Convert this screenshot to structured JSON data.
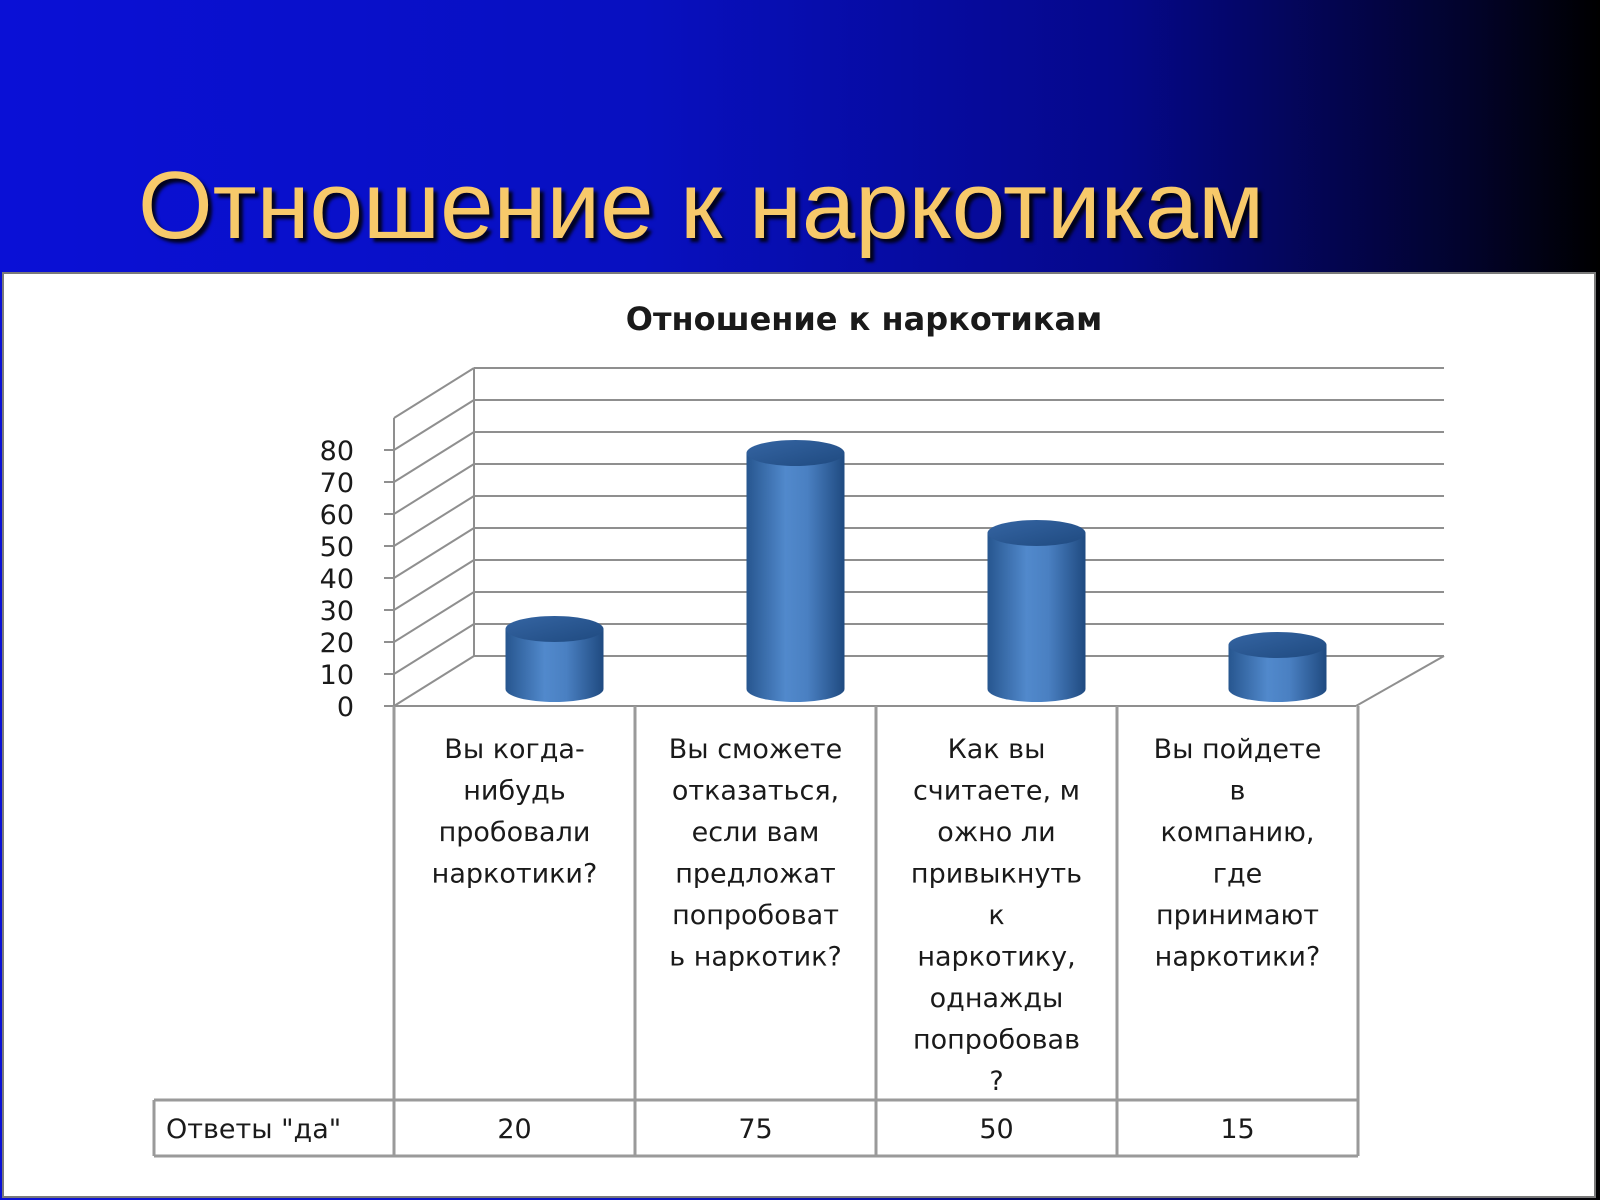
{
  "slide": {
    "title": "Отношение к наркотикам"
  },
  "colors": {
    "title_text": "#f7c96a",
    "bar_fill": "#4a7fc1",
    "bar_dark": "#2a5a96",
    "grid": "#8f8f8f"
  },
  "chart_data": {
    "type": "bar",
    "style": "3d-cylinder",
    "title": "Отношение к наркотикам",
    "categories": [
      "Вы когда-нибудь пробовали наркотики?",
      "Вы сможете отказаться, если вам предложат попробовать наркотик?",
      "Как вы считаете, можно ли привыкнуть к наркотику, однажды попробовав?",
      "Вы пойдете в компанию, где принимают наркотики?"
    ],
    "category_label_lines": [
      [
        "Вы когда-",
        "нибудь",
        "пробовали",
        "наркотики?"
      ],
      [
        "Вы сможете",
        "отказаться,",
        "если вам",
        "предложат",
        "попробоват",
        "ь наркотик?"
      ],
      [
        "Как вы",
        "считаете, м",
        "ожно ли",
        "привыкнуть",
        "к",
        "наркотику,",
        "однажды",
        "попробовав",
        "?"
      ],
      [
        "Вы пойдете",
        "в",
        "компанию,",
        "где",
        "принимают",
        "наркотики?"
      ]
    ],
    "series": [
      {
        "name": "Ответы \"да\"",
        "values": [
          20,
          75,
          50,
          15
        ]
      }
    ],
    "yticks": [
      0,
      10,
      20,
      30,
      40,
      50,
      60,
      70,
      80
    ],
    "ylim": [
      0,
      80
    ],
    "grid": true,
    "legend": "data-table",
    "data_table": true
  }
}
